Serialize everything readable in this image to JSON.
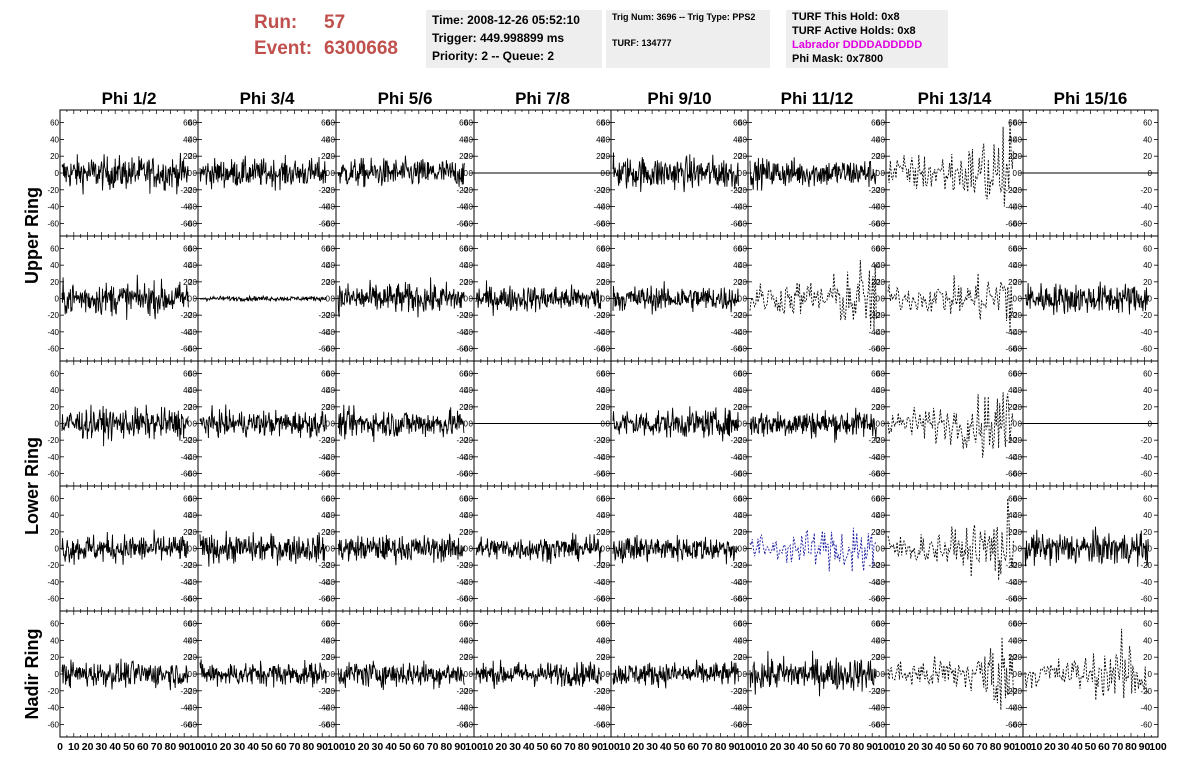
{
  "header": {
    "run_label": "Run:",
    "run_value": "57",
    "event_label": "Event:",
    "event_value": "6300668",
    "time": "Time: 2008-12-26 05:52:10",
    "trigger": "Trigger: 449.998899 ms",
    "priority": "Priority: 2 -- Queue: 2",
    "trig_num": "Trig Num: 3696 -- Trig Type: PPS2",
    "turf": "TURF: 134777",
    "turf_hold": "TURF This Hold: 0x8",
    "turf_active": "TURF Active Holds: 0x8",
    "labrador": "Labrador DDDDADDDDD",
    "phi_mask": "Phi Mask: 0x7800",
    "labrador_color": "#e000e0",
    "run_color": "#c0504d"
  },
  "chart_data": {
    "type": "line",
    "columns": [
      "Phi 1/2",
      "Phi 3/4",
      "Phi 5/6",
      "Phi 7/8",
      "Phi 9/10",
      "Phi 11/12",
      "Phi 13/14",
      "Phi 15/16"
    ],
    "row_groups": [
      "Upper Ring",
      "Lower Ring",
      "Nadir Ring"
    ],
    "ylim": [
      -75,
      75
    ],
    "xlim": [
      0,
      100
    ],
    "yticks": [
      -60,
      -40,
      -20,
      0,
      20,
      40,
      60
    ],
    "ytick_labels": [
      "-60",
      "-40",
      "-20",
      "0",
      "20",
      "40",
      "60"
    ],
    "xtick_labels": [
      "0",
      "10",
      "20",
      "30",
      "40",
      "50",
      "60",
      "70",
      "80",
      "90",
      "100"
    ],
    "rows": [
      {
        "styles": [
          "solid",
          "solid",
          "solid",
          "flat",
          "solid",
          "solid",
          "dashed",
          "flat"
        ],
        "amps": [
          14,
          12,
          12,
          0,
          14,
          12,
          22,
          0
        ]
      },
      {
        "styles": [
          "solid",
          "solid",
          "solid",
          "solid",
          "solid",
          "dashed",
          "dashed",
          "solid"
        ],
        "amps": [
          14,
          2,
          13,
          11,
          11,
          18,
          16,
          13
        ]
      },
      {
        "styles": [
          "solid",
          "solid",
          "solid",
          "flat",
          "solid",
          "solid",
          "dashed",
          "flat"
        ],
        "amps": [
          13,
          11,
          12,
          0,
          12,
          12,
          18,
          0
        ]
      },
      {
        "styles": [
          "solid",
          "solid",
          "solid",
          "solid",
          "solid",
          "dashed",
          "dashed",
          "solid"
        ],
        "amps": [
          12,
          12,
          11,
          10,
          11,
          16,
          17,
          14
        ]
      },
      {
        "styles": [
          "solid",
          "solid",
          "solid",
          "solid",
          "solid",
          "solid",
          "dashed",
          "dashed"
        ],
        "amps": [
          11,
          10,
          11,
          10,
          10,
          14,
          17,
          18
        ]
      }
    ],
    "trace_color": "#000000",
    "highlight": {
      "row": 3,
      "col": 5,
      "color": "#1a1aa0"
    }
  }
}
